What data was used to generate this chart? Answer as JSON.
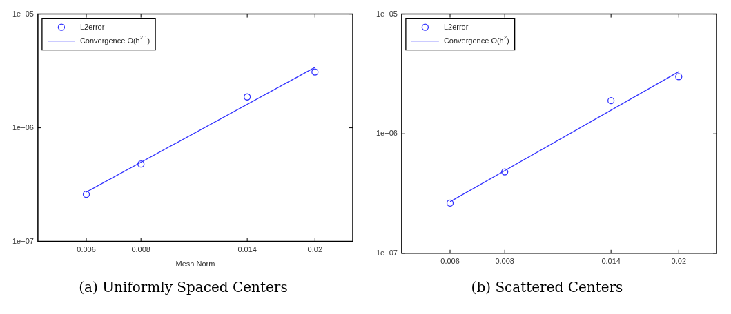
{
  "chart_data": [
    {
      "type": "scatter",
      "title": "(a) Uniformly Spaced Centers",
      "xlabel": "Mesh Norm",
      "log": "xy",
      "grid": false,
      "legend": "top left",
      "marker": "circle",
      "x": [
        0.006,
        0.008,
        0.014,
        0.02
      ],
      "xlim": [
        0.00465,
        0.0244
      ],
      "xticks": [
        0.006,
        0.008,
        0.014,
        0.02
      ],
      "ylim": [
        1e-07,
        1e-05
      ],
      "yticks": [
        {
          "value": 1e-07,
          "label": "1e−07"
        },
        {
          "value": 1e-06,
          "label": "1e−06"
        },
        {
          "value": 1e-05,
          "label": "1e−05"
        }
      ],
      "series": [
        {
          "name": "L2error",
          "color": "#3333ff",
          "values": [
            2.6e-07,
            4.8e-07,
            1.87e-06,
            3.1e-06
          ]
        },
        {
          "name": "Convergence O(h$^{2.1}$)",
          "type": "line",
          "color": "#3333ff",
          "line_style": "solid",
          "marker": "none",
          "values": [
            2.72e-07,
            null,
            null,
            3.4e-06
          ]
        }
      ]
    },
    {
      "type": "scatter",
      "title": "(b) Scattered Centers",
      "log": "xy",
      "grid": false,
      "legend": "top left",
      "marker": "circle",
      "x": [
        0.006,
        0.008,
        0.014,
        0.02
      ],
      "xlim": [
        0.00465,
        0.0244
      ],
      "xticks": [
        0.006,
        0.008,
        0.014,
        0.02
      ],
      "ylim": [
        1e-07,
        1e-05
      ],
      "yticks": [
        {
          "value": 1e-07,
          "label": "1e−07"
        },
        {
          "value": 1e-06,
          "label": "1e−06"
        },
        {
          "value": 1e-05,
          "label": "1e−05"
        }
      ],
      "series": [
        {
          "name": "L2error",
          "color": "#3333ff",
          "values": [
            2.63e-07,
            4.8e-07,
            1.89e-06,
            3e-06
          ]
        },
        {
          "name": "Convergence O(h$^{2}$)",
          "type": "line",
          "color": "#3333ff",
          "line_style": "solid",
          "marker": "none",
          "values": [
            2.7e-07,
            null,
            null,
            3.3e-06
          ]
        }
      ]
    }
  ]
}
